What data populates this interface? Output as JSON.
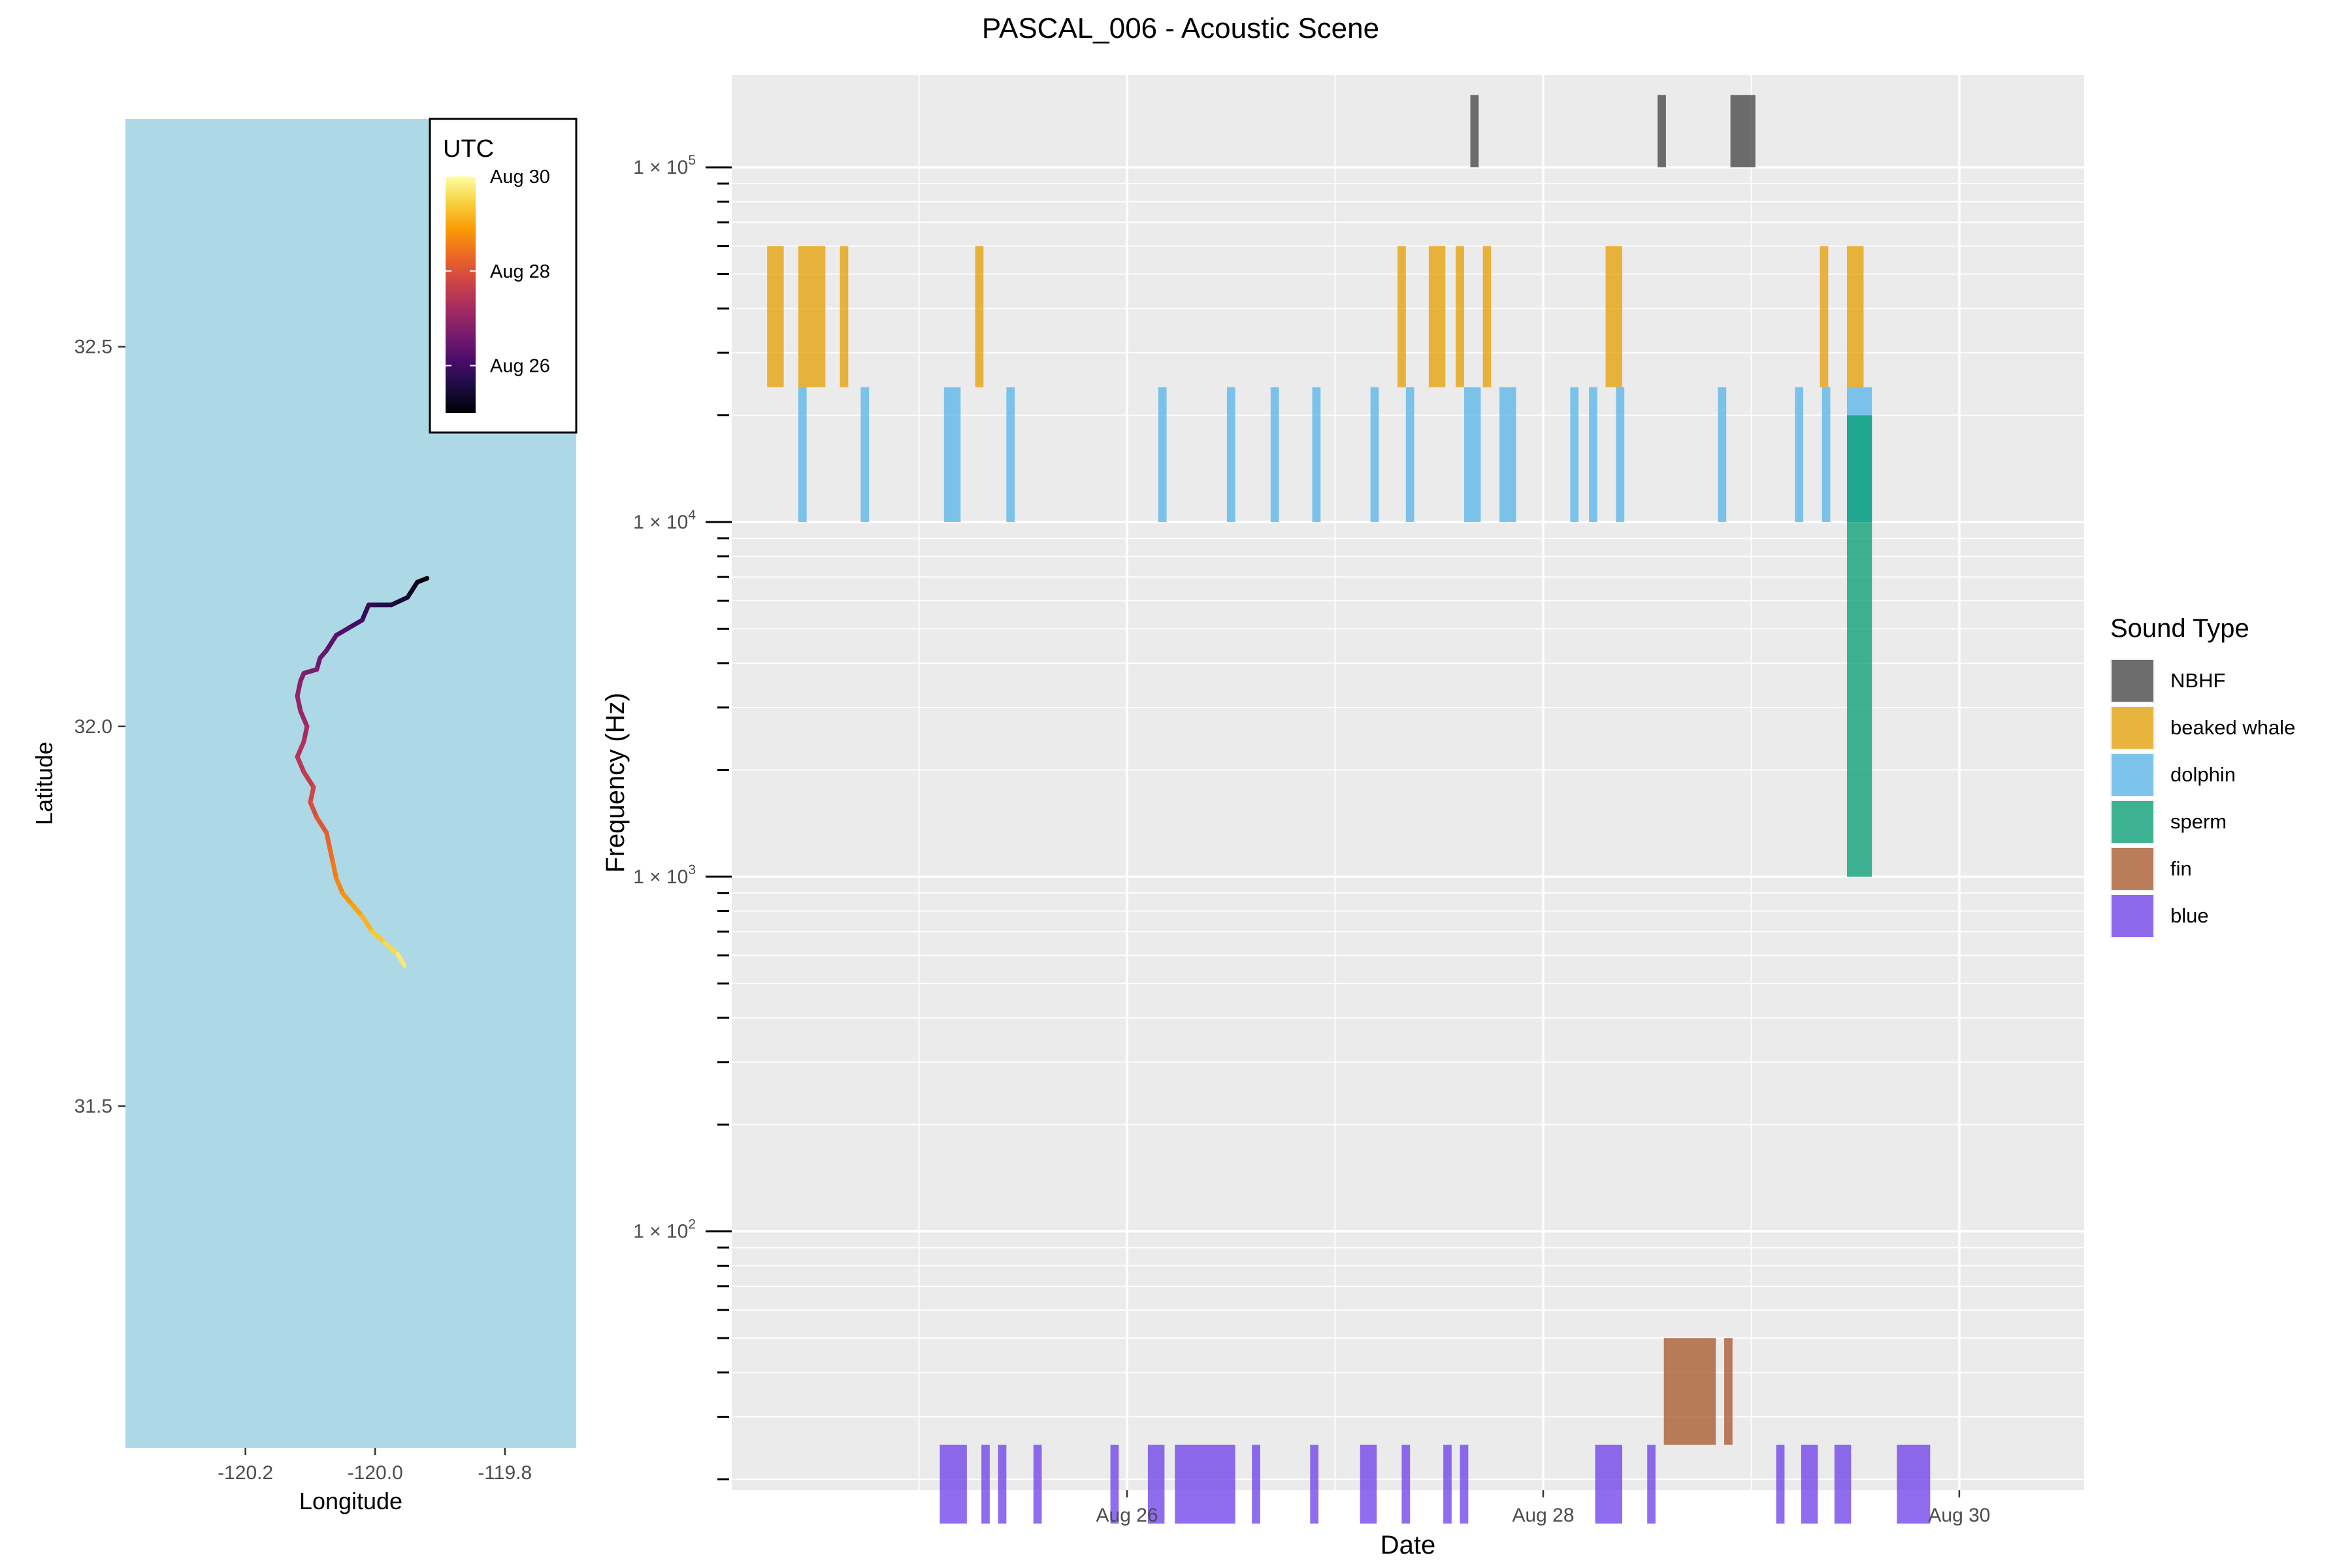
{
  "title": "PASCAL_006 - Acoustic Scene",
  "chart_data": [
    {
      "type": "line",
      "panel": "map",
      "xlabel": "Longitude",
      "ylabel": "Latitude",
      "xlim": [
        -120.385,
        -119.69
      ],
      "ylim": [
        31.05,
        32.8
      ],
      "xticks": [
        -120.2,
        -120.0,
        -119.8
      ],
      "xtick_labels": [
        "-120.2",
        "-120.0",
        "-119.8"
      ],
      "yticks": [
        31.5,
        32.0,
        32.5
      ],
      "ytick_labels": [
        "31.5",
        "32.0",
        "32.5"
      ],
      "background": "#add8e6",
      "grid": false,
      "track": [
        {
          "lon": -119.92,
          "lat": 32.195,
          "day": 25.0
        },
        {
          "lon": -119.935,
          "lat": 32.19,
          "day": 25.15
        },
        {
          "lon": -119.95,
          "lat": 32.17,
          "day": 25.35
        },
        {
          "lon": -119.975,
          "lat": 32.16,
          "day": 25.55
        },
        {
          "lon": -120.0,
          "lat": 32.16,
          "day": 25.7
        },
        {
          "lon": -120.01,
          "lat": 32.16,
          "day": 25.8
        },
        {
          "lon": -120.02,
          "lat": 32.14,
          "day": 25.95
        },
        {
          "lon": -120.04,
          "lat": 32.13,
          "day": 26.1
        },
        {
          "lon": -120.06,
          "lat": 32.12,
          "day": 26.25
        },
        {
          "lon": -120.075,
          "lat": 32.1,
          "day": 26.4
        },
        {
          "lon": -120.085,
          "lat": 32.09,
          "day": 26.5
        },
        {
          "lon": -120.09,
          "lat": 32.075,
          "day": 26.6
        },
        {
          "lon": -120.11,
          "lat": 32.07,
          "day": 26.75
        },
        {
          "lon": -120.115,
          "lat": 32.06,
          "day": 26.85
        },
        {
          "lon": -120.12,
          "lat": 32.04,
          "day": 26.95
        },
        {
          "lon": -120.115,
          "lat": 32.02,
          "day": 27.05
        },
        {
          "lon": -120.105,
          "lat": 32.0,
          "day": 27.15
        },
        {
          "lon": -120.11,
          "lat": 31.98,
          "day": 27.3
        },
        {
          "lon": -120.12,
          "lat": 31.96,
          "day": 27.4
        },
        {
          "lon": -120.11,
          "lat": 31.94,
          "day": 27.55
        },
        {
          "lon": -120.095,
          "lat": 31.92,
          "day": 27.7
        },
        {
          "lon": -120.1,
          "lat": 31.9,
          "day": 27.85
        },
        {
          "lon": -120.09,
          "lat": 31.88,
          "day": 28.0
        },
        {
          "lon": -120.075,
          "lat": 31.86,
          "day": 28.15
        },
        {
          "lon": -120.07,
          "lat": 31.84,
          "day": 28.3
        },
        {
          "lon": -120.065,
          "lat": 31.82,
          "day": 28.45
        },
        {
          "lon": -120.06,
          "lat": 31.8,
          "day": 28.6
        },
        {
          "lon": -120.05,
          "lat": 31.78,
          "day": 28.75
        },
        {
          "lon": -120.035,
          "lat": 31.765,
          "day": 28.9
        },
        {
          "lon": -120.02,
          "lat": 31.75,
          "day": 29.05
        },
        {
          "lon": -120.005,
          "lat": 31.73,
          "day": 29.25
        },
        {
          "lon": -119.985,
          "lat": 31.715,
          "day": 29.45
        },
        {
          "lon": -119.965,
          "lat": 31.7,
          "day": 29.65
        },
        {
          "lon": -119.955,
          "lat": 31.685,
          "day": 29.8
        }
      ],
      "colorbar": {
        "title": "UTC",
        "min_day": 25.0,
        "max_day": 30.0,
        "ticks": [
          26,
          28,
          30
        ],
        "tick_labels": [
          "Aug 26",
          "Aug 28",
          "Aug 30"
        ],
        "palette": [
          "#000004",
          "#1b0c41",
          "#4a0c6b",
          "#781c6d",
          "#a52c60",
          "#cf4446",
          "#ed6925",
          "#fb9b06",
          "#f7d13d",
          "#fcffa4"
        ]
      }
    },
    {
      "type": "bar",
      "panel": "acoustic",
      "xlabel": "Date",
      "ylabel": "Frequency (Hz)",
      "yscale": "log",
      "xlim": [
        24.1,
        30.6
      ],
      "ylim_log10": [
        1.27,
        5.26
      ],
      "xticks": [
        26,
        28,
        30
      ],
      "xtick_labels": [
        "Aug 26",
        "Aug 28",
        "Aug 30"
      ],
      "yticks": [
        {
          "value": 100,
          "base": "1 × 10",
          "exp": "2"
        },
        {
          "value": 1000,
          "base": "1 × 10",
          "exp": "3"
        },
        {
          "value": 10000,
          "base": "1 × 10",
          "exp": "4"
        },
        {
          "value": 100000,
          "base": "1 × 10",
          "exp": "5"
        }
      ],
      "grid": true,
      "legend": {
        "title": "Sound Type",
        "position": "right"
      },
      "series": [
        {
          "name": "NBHF",
          "color": "#404040",
          "freq_range": [
            100000,
            160000
          ],
          "intervals": [
            [
              27.65,
              27.69
            ],
            [
              28.55,
              28.59
            ],
            [
              28.9,
              29.02
            ]
          ]
        },
        {
          "name": "beaked whale",
          "color": "#e69f00",
          "freq_range": [
            24000,
            60000
          ],
          "intervals": [
            [
              24.27,
              24.35
            ],
            [
              24.42,
              24.55
            ],
            [
              24.62,
              24.66
            ],
            [
              25.27,
              25.31
            ],
            [
              27.3,
              27.34
            ],
            [
              27.45,
              27.53
            ],
            [
              27.58,
              27.62
            ],
            [
              27.71,
              27.75
            ],
            [
              28.3,
              28.38
            ],
            [
              29.33,
              29.37
            ],
            [
              29.46,
              29.54
            ]
          ]
        },
        {
          "name": "dolphin",
          "color": "#56b4e9",
          "freq_range": [
            10000,
            24000
          ],
          "intervals": [
            [
              24.42,
              24.46
            ],
            [
              24.72,
              24.76
            ],
            [
              25.12,
              25.2
            ],
            [
              25.42,
              25.46
            ],
            [
              26.15,
              26.19
            ],
            [
              26.48,
              26.52
            ],
            [
              26.69,
              26.73
            ],
            [
              26.89,
              26.93
            ],
            [
              27.17,
              27.21
            ],
            [
              27.34,
              27.38
            ],
            [
              27.62,
              27.7
            ],
            [
              27.79,
              27.87
            ],
            [
              28.13,
              28.17
            ],
            [
              28.22,
              28.26
            ],
            [
              28.35,
              28.39
            ],
            [
              28.84,
              28.88
            ],
            [
              29.21,
              29.25
            ],
            [
              29.34,
              29.38
            ],
            [
              29.46,
              29.58
            ]
          ]
        },
        {
          "name": "sperm",
          "color": "#009e73",
          "freq_range": [
            1000,
            20000
          ],
          "intervals": [
            [
              29.46,
              29.58
            ]
          ]
        },
        {
          "name": "fin",
          "color": "#a65628",
          "freq_range": [
            25,
            50
          ],
          "intervals": [
            [
              28.58,
              28.83
            ],
            [
              28.87,
              28.91
            ]
          ]
        },
        {
          "name": "blue",
          "color": "#6a3ce8",
          "freq_range": [
            15,
            25
          ],
          "intervals": [
            [
              25.1,
              25.23
            ],
            [
              25.3,
              25.34
            ],
            [
              25.38,
              25.42
            ],
            [
              25.55,
              25.59
            ],
            [
              25.92,
              25.96
            ],
            [
              26.1,
              26.18
            ],
            [
              26.23,
              26.52
            ],
            [
              26.6,
              26.64
            ],
            [
              26.88,
              26.92
            ],
            [
              27.12,
              27.2
            ],
            [
              27.32,
              27.36
            ],
            [
              27.52,
              27.56
            ],
            [
              27.6,
              27.64
            ],
            [
              28.25,
              28.38
            ],
            [
              28.5,
              28.54
            ],
            [
              29.12,
              29.16
            ],
            [
              29.24,
              29.32
            ],
            [
              29.4,
              29.48
            ],
            [
              29.7,
              29.86
            ]
          ]
        }
      ]
    }
  ]
}
